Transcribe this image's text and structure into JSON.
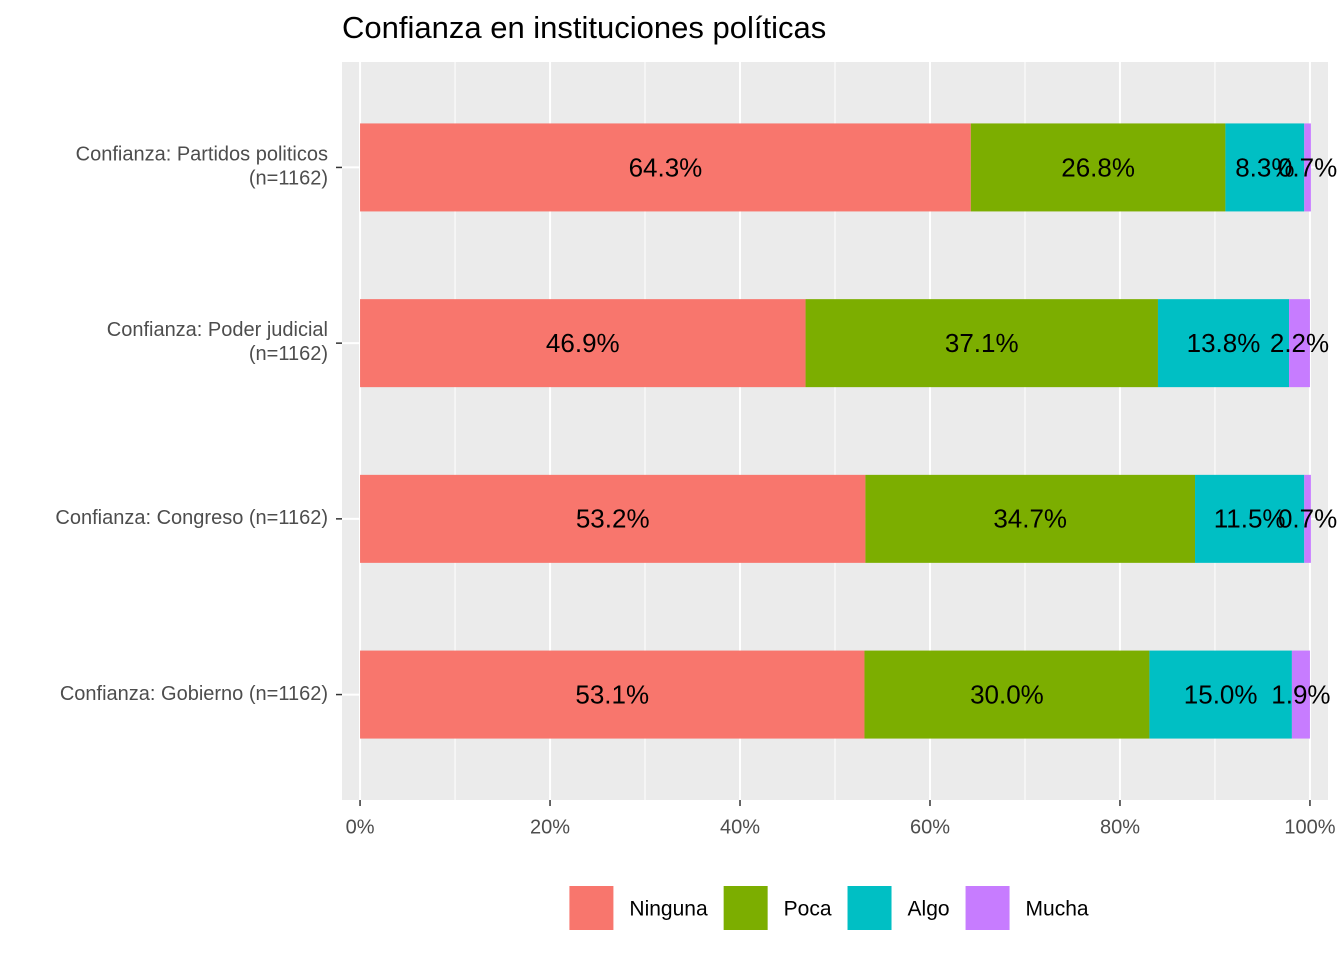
{
  "chart_data": {
    "type": "stacked-bar-horizontal",
    "title": "Confianza en instituciones políticas",
    "categories": [
      "Confianza: Partidos politicos\n(n=1162)",
      "Confianza: Poder judicial\n(n=1162)",
      "Confianza: Congreso (n=1162)",
      "Confianza: Gobierno (n=1162)"
    ],
    "series": [
      {
        "name": "Ninguna",
        "color": "#f8766d",
        "values": [
          64.3,
          46.9,
          53.2,
          53.1
        ],
        "value_labels": [
          "64.3%",
          "46.9%",
          "53.2%",
          "53.1%"
        ]
      },
      {
        "name": "Poca",
        "color": "#7cae00",
        "values": [
          26.8,
          37.1,
          34.7,
          30.0
        ],
        "value_labels": [
          "26.8%",
          "37.1%",
          "34.7%",
          "30.0%"
        ]
      },
      {
        "name": "Algo",
        "color": "#00bfc4",
        "values": [
          8.3,
          13.8,
          11.5,
          15.0
        ],
        "value_labels": [
          "8.3%",
          "13.8%",
          "11.5%",
          "15.0%"
        ]
      },
      {
        "name": "Mucha",
        "color": "#c77cff",
        "values": [
          0.7,
          2.2,
          0.7,
          1.9
        ],
        "value_labels": [
          "0.7%",
          "2.2%",
          "0.7%",
          "1.9%"
        ]
      }
    ],
    "xlim": [
      -1.9,
      101.9
    ],
    "xticks": [
      {
        "value": 0,
        "label": "0%"
      },
      {
        "value": 20,
        "label": "20%"
      },
      {
        "value": 40,
        "label": "40%"
      },
      {
        "value": 60,
        "label": "60%"
      },
      {
        "value": 80,
        "label": "80%"
      },
      {
        "value": 100,
        "label": "100%"
      }
    ],
    "grid": true,
    "legend": "bottom"
  }
}
